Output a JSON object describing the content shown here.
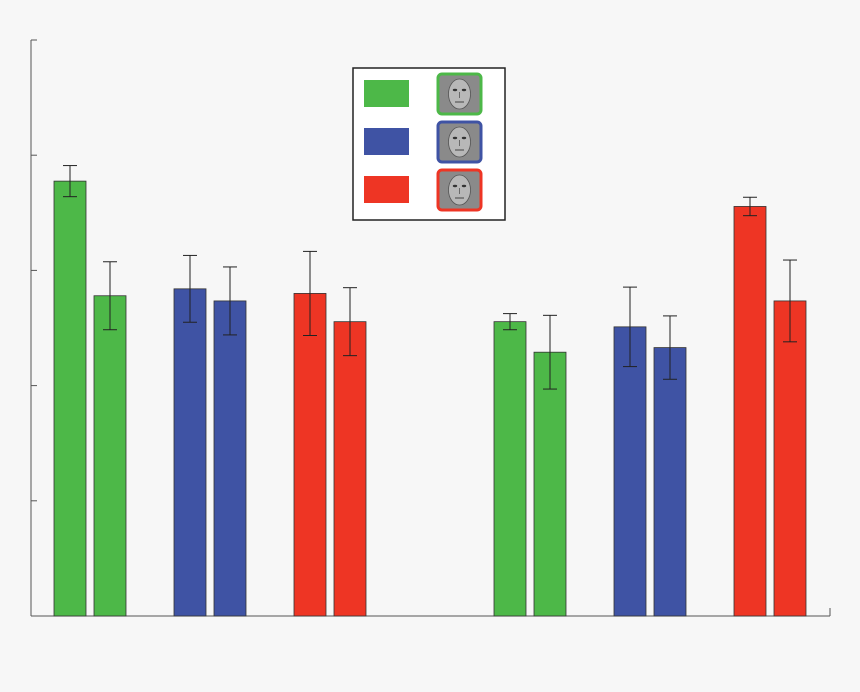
{
  "chart_data": {
    "type": "bar",
    "ylim": [
      0,
      1
    ],
    "y_ticks": [
      0,
      0.2,
      0.4,
      0.6,
      0.8,
      1.0
    ],
    "grid": false,
    "legend_placement": "top-center",
    "legend_icons": [
      "face-thumbnail-icon",
      "face-thumbnail-icon",
      "face-thumbnail-icon"
    ],
    "colors": {
      "green": "#4db848",
      "blue": "#3f53a4",
      "red": "#ee3524"
    },
    "groups": [
      {
        "color": "green",
        "bars": [
          {
            "value": 0.755,
            "err_low": 0.027,
            "err_high": 0.027
          },
          {
            "value": 0.556,
            "err_low": 0.059,
            "err_high": 0.059
          }
        ]
      },
      {
        "color": "blue",
        "bars": [
          {
            "value": 0.568,
            "err_low": 0.058,
            "err_high": 0.058
          },
          {
            "value": 0.547,
            "err_low": 0.059,
            "err_high": 0.059
          }
        ]
      },
      {
        "color": "red",
        "bars": [
          {
            "value": 0.56,
            "err_low": 0.073,
            "err_high": 0.073
          },
          {
            "value": 0.511,
            "err_low": 0.059,
            "err_high": 0.059
          }
        ]
      },
      {
        "color": "green",
        "bars": [
          {
            "value": 0.511,
            "err_low": 0.014,
            "err_high": 0.014
          },
          {
            "value": 0.458,
            "err_low": 0.064,
            "err_high": 0.064
          }
        ]
      },
      {
        "color": "blue",
        "bars": [
          {
            "value": 0.502,
            "err_low": 0.069,
            "err_high": 0.069
          },
          {
            "value": 0.466,
            "err_low": 0.055,
            "err_high": 0.055
          }
        ]
      },
      {
        "color": "red",
        "bars": [
          {
            "value": 0.711,
            "err_low": 0.016,
            "err_high": 0.016
          },
          {
            "value": 0.547,
            "err_low": 0.071,
            "err_high": 0.071
          }
        ]
      }
    ]
  }
}
